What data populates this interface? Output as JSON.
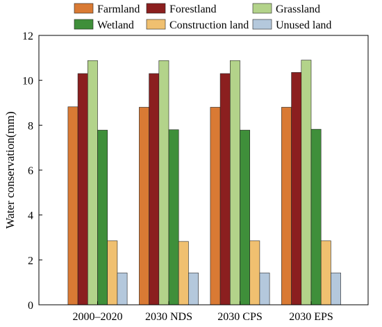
{
  "chart_data": {
    "type": "bar",
    "title": "",
    "xlabel": "",
    "ylabel": "Water conservation(mm)",
    "ylim": [
      0,
      12
    ],
    "yticks": [
      0,
      2,
      4,
      6,
      8,
      10,
      12
    ],
    "grid": false,
    "legend_position": "top",
    "categories": [
      "2000–2020",
      "2030 NDS",
      "2030 CPS",
      "2030 EPS"
    ],
    "series": [
      {
        "name": "Farmland",
        "color": "#d97a34",
        "values": [
          8.82,
          8.8,
          8.8,
          8.8
        ]
      },
      {
        "name": "Forestland",
        "color": "#8b1f1f",
        "values": [
          10.3,
          10.3,
          10.3,
          10.35
        ]
      },
      {
        "name": "Grassland",
        "color": "#b3d38a",
        "values": [
          10.88,
          10.88,
          10.88,
          10.9
        ]
      },
      {
        "name": "Wetland",
        "color": "#3f8f3a",
        "values": [
          7.78,
          7.8,
          7.78,
          7.82
        ]
      },
      {
        "name": "Construction land",
        "color": "#f0c070",
        "values": [
          2.85,
          2.82,
          2.85,
          2.85
        ]
      },
      {
        "name": "Unused land",
        "color": "#b4c8dc",
        "values": [
          1.42,
          1.42,
          1.42,
          1.42
        ]
      }
    ]
  }
}
